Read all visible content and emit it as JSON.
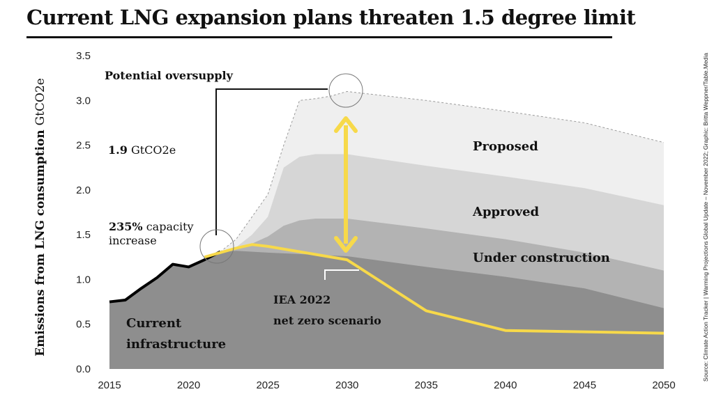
{
  "chart_data": {
    "type": "area",
    "title": "Current LNG expansion plans threaten 1.5 degree limit",
    "ylabel": "Emissions from LNG consumption",
    "ylabel_unit": "GtCO2e",
    "source": "Source: Climate Action Tracker | Warming Projections Global Update – November 2022; Graphic: Britta Weppner/Table.Media",
    "xlim": [
      2015,
      2050
    ],
    "ylim": [
      0,
      3.5
    ],
    "x_ticks": [
      2015,
      2020,
      2025,
      2030,
      2035,
      2040,
      2045,
      2050
    ],
    "y_ticks": [
      "0.0",
      "0.5",
      "1.0",
      "1.5",
      "2.0",
      "2.5",
      "3.0",
      "3.5"
    ],
    "grid": false,
    "series": [
      {
        "name": "Current infrastructure",
        "color": "#8e8e8e",
        "x": [
          2015,
          2016,
          2017,
          2018,
          2019,
          2020,
          2021,
          2022,
          2023,
          2025,
          2030,
          2035,
          2040,
          2045,
          2050
        ],
        "y": [
          0.75,
          0.77,
          0.9,
          1.02,
          1.17,
          1.14,
          1.22,
          1.31,
          1.32,
          1.3,
          1.26,
          1.14,
          1.03,
          0.9,
          0.68
        ]
      },
      {
        "name": "Under construction",
        "color": "#b3b3b3",
        "x": [
          2022,
          2023,
          2024,
          2025,
          2026,
          2027,
          2028,
          2030,
          2035,
          2040,
          2045,
          2050
        ],
        "y": [
          1.31,
          1.34,
          1.4,
          1.48,
          1.6,
          1.66,
          1.68,
          1.68,
          1.57,
          1.45,
          1.3,
          1.1
        ]
      },
      {
        "name": "Approved",
        "color": "#d6d6d6",
        "x": [
          2022,
          2023,
          2024,
          2025,
          2026,
          2027,
          2028,
          2030,
          2035,
          2040,
          2045,
          2050
        ],
        "y": [
          1.31,
          1.36,
          1.5,
          1.7,
          2.25,
          2.37,
          2.4,
          2.4,
          2.27,
          2.15,
          2.02,
          1.83
        ]
      },
      {
        "name": "Proposed",
        "color": "#efefef",
        "x": [
          2022,
          2023,
          2024,
          2025,
          2026,
          2027,
          2028,
          2029,
          2030,
          2035,
          2040,
          2045,
          2050
        ],
        "y": [
          1.31,
          1.45,
          1.7,
          1.95,
          2.5,
          3.0,
          3.02,
          3.05,
          3.1,
          3.0,
          2.88,
          2.75,
          2.53
        ]
      },
      {
        "name": "IEA 2022 net zero scenario",
        "color": "#f7d94a",
        "x": [
          2021,
          2022,
          2023,
          2024,
          2025,
          2030,
          2035,
          2040,
          2050
        ],
        "y": [
          1.25,
          1.3,
          1.35,
          1.39,
          1.37,
          1.22,
          0.65,
          0.43,
          0.4
        ]
      }
    ],
    "annotations": {
      "oversupply": "Potential oversupply",
      "gt_value": "1.9",
      "gt_unit": "GtCO2e",
      "capacity_value": "235%",
      "capacity_text": "capacity",
      "capacity_text2": "increase",
      "proposed": "Proposed",
      "approved": "Approved",
      "under_construction": "Under construction",
      "current_1": "Current",
      "current_2": "infrastructure",
      "iea_1": "IEA 2022",
      "iea_2": "net zero scenario"
    },
    "colors": {
      "historic_line": "#000000",
      "arrow": "#f7d94a",
      "proposed_edge": "#9a9a9a"
    }
  }
}
